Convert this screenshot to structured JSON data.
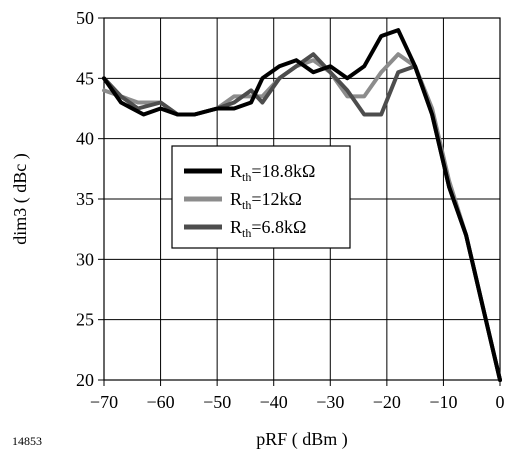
{
  "figure_id": "14853",
  "chart_data": {
    "type": "line",
    "xlabel": "pRF ( dBm )",
    "ylabel": "dim3 ( dBc )",
    "xlim": [
      -70,
      0
    ],
    "ylim": [
      20,
      50
    ],
    "xticks": [
      -70,
      -60,
      -50,
      -40,
      -30,
      -20,
      -10,
      0
    ],
    "xtick_labels": [
      "−70",
      "−60",
      "−50",
      "−40",
      "−30",
      "−20",
      "−10",
      "0"
    ],
    "yticks": [
      20,
      25,
      30,
      35,
      40,
      45,
      50
    ],
    "ytick_labels": [
      "20",
      "25",
      "30",
      "35",
      "40",
      "45",
      "50"
    ],
    "grid": true,
    "legend_position": "center-left",
    "series": [
      {
        "name": "R_th=18.8kΩ",
        "label_main": "R",
        "label_sub": "th",
        "label_rest": "=18.8kΩ",
        "color": "#000000",
        "x": [
          -70,
          -67,
          -63,
          -60,
          -57,
          -54,
          -50,
          -47,
          -44,
          -42,
          -39,
          -36,
          -33,
          -30,
          -27,
          -24,
          -21,
          -18,
          -15,
          -12,
          -9,
          -6,
          -3,
          0
        ],
        "y": [
          45,
          43,
          42,
          42.5,
          42,
          42,
          42.5,
          42.5,
          43,
          45,
          46,
          46.5,
          45.5,
          46,
          45,
          46,
          48.5,
          49,
          46,
          42,
          36,
          32,
          26,
          20
        ]
      },
      {
        "name": "R_th=12kΩ",
        "label_main": "R",
        "label_sub": "th",
        "label_rest": "=12kΩ",
        "color": "#8c8c8c",
        "x": [
          -70,
          -67,
          -64,
          -60,
          -57,
          -54,
          -50,
          -47,
          -44,
          -42,
          -39,
          -36,
          -33,
          -30,
          -27,
          -24,
          -21,
          -18,
          -15,
          -12,
          -9,
          -6,
          -3,
          0
        ],
        "y": [
          44,
          43.5,
          43,
          43,
          42,
          42,
          42.5,
          43.5,
          43.5,
          43.5,
          45,
          46,
          46.5,
          45.5,
          43.5,
          43.5,
          45.5,
          47,
          46,
          42.5,
          36.5,
          32,
          26,
          20
        ]
      },
      {
        "name": "R_th=6.8kΩ",
        "label_main": "R",
        "label_sub": "th",
        "label_rest": "=6.8kΩ",
        "color": "#4d4d4d",
        "x": [
          -70,
          -67,
          -64,
          -60,
          -57,
          -54,
          -50,
          -47,
          -44,
          -42,
          -39,
          -36,
          -33,
          -30,
          -27,
          -24,
          -21,
          -18,
          -15,
          -12,
          -9,
          -6,
          -3,
          0
        ],
        "y": [
          45,
          43.5,
          42.5,
          43,
          42,
          42,
          42.5,
          43,
          44,
          43,
          45,
          46,
          47,
          45.5,
          44,
          42,
          42,
          45.5,
          46,
          42,
          36,
          32,
          26,
          20
        ]
      }
    ]
  }
}
